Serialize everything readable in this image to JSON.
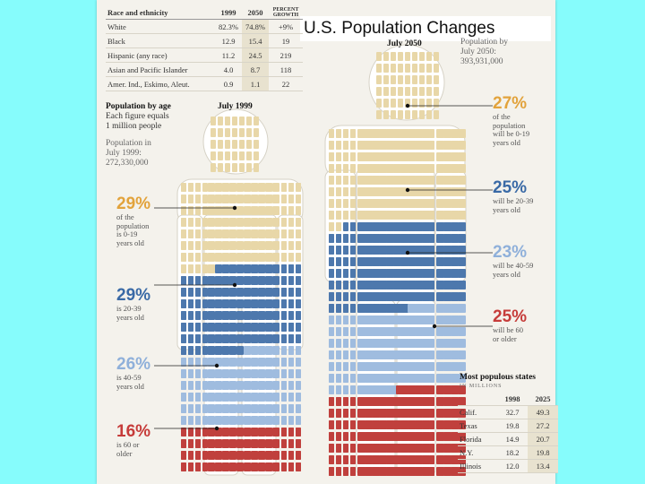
{
  "slide_title": "U.S. Population Changes",
  "colors": {
    "youth": "#e8d7a8",
    "adult": "#4d78ad",
    "middle": "#9fbcdf",
    "senior": "#c0403d"
  },
  "race_table": {
    "headers": [
      "Race and ethnicity",
      "1999",
      "2050",
      "PERCENT GROWTH"
    ],
    "rows": [
      [
        "White",
        "82.3%",
        "74.8%",
        "+9%"
      ],
      [
        "Black",
        "12.9",
        "15.4",
        "19"
      ],
      [
        "Hispanic (any race)",
        "11.2",
        "24.5",
        "219"
      ],
      [
        "Asian and Pacific Islander",
        "4.0",
        "8.7",
        "118"
      ],
      [
        "Amer. Ind., Eskimo, Aleut.",
        "0.9",
        "1.1",
        "22"
      ]
    ]
  },
  "age_section": {
    "title": "Population by age",
    "subtitle_1": "Each figure equals",
    "subtitle_2": "1 million people",
    "pop_1999_label_1": "Population in",
    "pop_1999_label_2": "July 1999:",
    "pop_1999_value": "272,330,000",
    "figure_1999_label": "July 1999",
    "figure_2050_label": "July 2050",
    "pop_2050_label_1": "Population by",
    "pop_2050_label_2": "July 2050:",
    "pop_2050_value": "393,931,000"
  },
  "chart_data": {
    "type": "table",
    "title": "U.S. Population Changes",
    "age_distribution": {
      "categories": [
        "0-19",
        "20-39",
        "40-59",
        "60 or older"
      ],
      "series": [
        {
          "name": "July 1999",
          "values": [
            29,
            29,
            26,
            16
          ]
        },
        {
          "name": "July 2050",
          "values": [
            27,
            25,
            23,
            25
          ]
        }
      ],
      "unit": "percent of population"
    },
    "race_ethnicity": {
      "categories": [
        "White",
        "Black",
        "Hispanic (any race)",
        "Asian and Pacific Islander",
        "Amer. Ind., Eskimo, Aleut."
      ],
      "series": [
        {
          "name": "1999",
          "values": [
            82.3,
            12.9,
            11.2,
            4.0,
            0.9
          ]
        },
        {
          "name": "2050",
          "values": [
            74.8,
            15.4,
            24.5,
            8.7,
            1.1
          ]
        },
        {
          "name": "Percent growth",
          "values": [
            9,
            19,
            219,
            118,
            22
          ]
        }
      ]
    },
    "populous_states": {
      "unit": "IN MILLIONS",
      "categories": [
        "Calif.",
        "Texas",
        "Florida",
        "N.Y.",
        "Illinois"
      ],
      "series": [
        {
          "name": "1998",
          "values": [
            32.7,
            19.8,
            14.9,
            18.2,
            12.0
          ]
        },
        {
          "name": "2025",
          "values": [
            49.3,
            27.2,
            20.7,
            19.8,
            13.4
          ]
        }
      ]
    }
  },
  "labels_1999": [
    {
      "pct": "29%",
      "line1": "of the",
      "line2": "population",
      "line3": "is 0-19",
      "line4": "years old"
    },
    {
      "pct": "29%",
      "line1": "is 20-39",
      "line2": "years old",
      "line3": "",
      "line4": ""
    },
    {
      "pct": "26%",
      "line1": "is 40-59",
      "line2": "years old",
      "line3": "",
      "line4": ""
    },
    {
      "pct": "16%",
      "line1": "is 60 or",
      "line2": "older",
      "line3": "",
      "line4": ""
    }
  ],
  "labels_2050": [
    {
      "pct": "27%",
      "line1": "of the",
      "line2": "population",
      "line3": "will be 0-19",
      "line4": "years old"
    },
    {
      "pct": "25%",
      "line1": "will be 20-39",
      "line2": "years old",
      "line3": "",
      "line4": ""
    },
    {
      "pct": "23%",
      "line1": "will be 40-59",
      "line2": "years old",
      "line3": "",
      "line4": ""
    },
    {
      "pct": "25%",
      "line1": "will be 60",
      "line2": "or older",
      "line3": "",
      "line4": ""
    }
  ],
  "states_table": {
    "title": "Most populous states",
    "unit": "IN MILLIONS",
    "headers": [
      "",
      "1998",
      "2025"
    ],
    "rows": [
      [
        "Calif.",
        "32.7",
        "49.3"
      ],
      [
        "Texas",
        "19.8",
        "27.2"
      ],
      [
        "Florida",
        "14.9",
        "20.7"
      ],
      [
        "N.Y.",
        "18.2",
        "19.8"
      ],
      [
        "Illinois",
        "12.0",
        "13.4"
      ]
    ]
  }
}
